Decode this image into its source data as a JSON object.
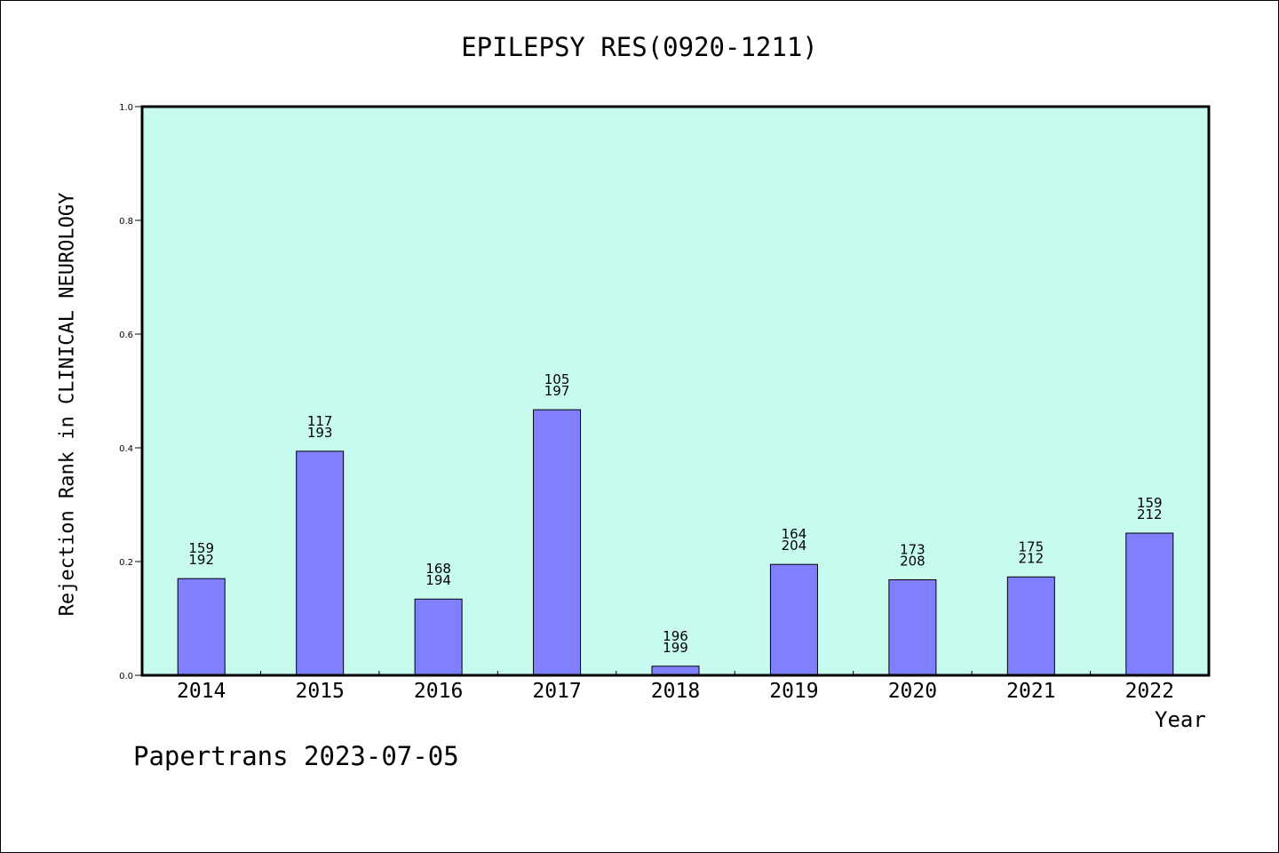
{
  "chart_data": {
    "type": "bar",
    "title": "EPILEPSY RES(0920-1211)",
    "xlabel": "Year",
    "ylabel": "Rejection Rank in CLINICAL NEUROLOGY",
    "footer": "Papertrans 2023-07-05",
    "categories": [
      "2014",
      "2015",
      "2016",
      "2017",
      "2018",
      "2019",
      "2020",
      "2021",
      "2022"
    ],
    "values": [
      0.17,
      0.394,
      0.134,
      0.467,
      0.016,
      0.195,
      0.168,
      0.173,
      0.25
    ],
    "labels_top": [
      "159",
      "117",
      "168",
      "105",
      "196",
      "164",
      "173",
      "175",
      "159"
    ],
    "labels_bottom": [
      "192",
      "193",
      "194",
      "197",
      "199",
      "204",
      "208",
      "212",
      "212"
    ],
    "ylim": [
      0,
      1.0
    ],
    "yticks": [
      "0.0",
      "0.2",
      "0.4",
      "0.6",
      "0.8",
      "1.0"
    ],
    "grid": false,
    "colors": {
      "background": "#c8fbef",
      "bar": "#8080ff",
      "bar_stroke": "#000000"
    }
  }
}
